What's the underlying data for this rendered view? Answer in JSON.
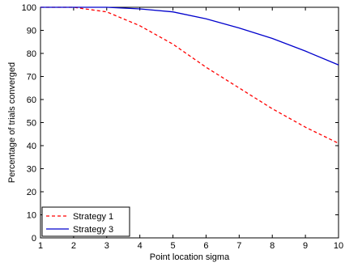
{
  "chart_data": {
    "type": "line",
    "xlabel": "Point location sigma",
    "ylabel": "Percentage of trials converged",
    "xlim": [
      1,
      10
    ],
    "ylim": [
      0,
      100
    ],
    "xticks": [
      1,
      2,
      3,
      4,
      5,
      6,
      7,
      8,
      9,
      10
    ],
    "yticks": [
      0,
      10,
      20,
      30,
      40,
      50,
      60,
      70,
      80,
      90,
      100
    ],
    "grid": false,
    "legend_position": "bottom-left",
    "series": [
      {
        "name": "Strategy 1",
        "color": "#ff0000",
        "line_style": "dashed",
        "x": [
          1,
          2,
          3,
          4,
          5,
          6,
          7,
          8,
          9,
          10
        ],
        "y": [
          100,
          100,
          98,
          92,
          84,
          74,
          65,
          56,
          48,
          41
        ]
      },
      {
        "name": "Strategy 3",
        "color": "#0000cc",
        "line_style": "solid",
        "x": [
          1,
          2,
          3,
          4,
          5,
          6,
          7,
          8,
          9,
          10
        ],
        "y": [
          100,
          100,
          100,
          99.3,
          98,
          95,
          91,
          86.5,
          81,
          75
        ]
      }
    ]
  }
}
